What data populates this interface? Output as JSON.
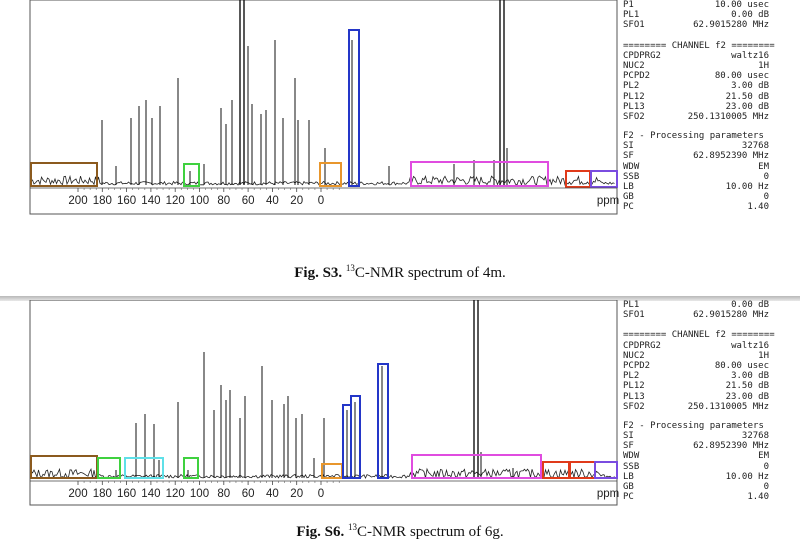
{
  "figures": [
    {
      "caption_label": "Fig. S3.",
      "caption_sup": "13",
      "caption_text": "C-NMR spectrum of 4m.",
      "axis_ticks": [
        "200",
        "180",
        "160",
        "140",
        "120",
        "100",
        "80",
        "60",
        "40",
        "20",
        "0",
        "ppm"
      ],
      "params_top": [
        {
          "k": "P1",
          "v": "10.00 usec"
        },
        {
          "k": "PL1",
          "v": "0.00 dB"
        },
        {
          "k": "SFO1",
          "v": "62.9015280 MHz"
        }
      ],
      "channel_header": "======== CHANNEL f2 ========",
      "channel_params": [
        {
          "k": "CPDPRG2",
          "v": "waltz16"
        },
        {
          "k": "NUC2",
          "v": "1H"
        },
        {
          "k": "PCPD2",
          "v": "80.00 usec"
        },
        {
          "k": "PL2",
          "v": "3.00 dB"
        },
        {
          "k": "PL12",
          "v": "21.50 dB"
        },
        {
          "k": "PL13",
          "v": "23.00 dB"
        },
        {
          "k": "SFO2",
          "v": "250.1310005 MHz"
        }
      ],
      "processing_header": "F2 - Processing parameters",
      "processing_params": [
        {
          "k": "SI",
          "v": "32768"
        },
        {
          "k": "SF",
          "v": "62.8952390 MHz"
        },
        {
          "k": "WDW",
          "v": "EM"
        },
        {
          "k": "SSB",
          "v": "0"
        },
        {
          "k": "LB",
          "v": "10.00 Hz"
        },
        {
          "k": "GB",
          "v": "0"
        },
        {
          "k": "PC",
          "v": "1.40"
        }
      ],
      "box_colors": {
        "brown": "#8B5A1E",
        "green": "#3FD13F",
        "orange": "#E8962C",
        "blue": "#2436C8",
        "magenta": "#E04CE0",
        "red": "#E03A1A",
        "violet": "#7A4CE0",
        "cyan": "#5FE0E8"
      }
    },
    {
      "caption_label": "Fig. S6.",
      "caption_sup": "13",
      "caption_text": "C-NMR spectrum of 6g.",
      "axis_ticks": [
        "200",
        "180",
        "160",
        "140",
        "120",
        "100",
        "80",
        "60",
        "40",
        "20",
        "0",
        "ppm"
      ],
      "params_top": [
        {
          "k": "PL1",
          "v": "0.00 dB"
        },
        {
          "k": "SFO1",
          "v": "62.9015280 MHz"
        }
      ],
      "channel_header": "======== CHANNEL f2 ========",
      "channel_params": [
        {
          "k": "CPDPRG2",
          "v": "waltz16"
        },
        {
          "k": "NUC2",
          "v": "1H"
        },
        {
          "k": "PCPD2",
          "v": "80.00 usec"
        },
        {
          "k": "PL2",
          "v": "3.00 dB"
        },
        {
          "k": "PL12",
          "v": "21.50 dB"
        },
        {
          "k": "PL13",
          "v": "23.00 dB"
        },
        {
          "k": "SFO2",
          "v": "250.1310005 MHz"
        }
      ],
      "processing_header": "F2 - Processing parameters",
      "processing_params": [
        {
          "k": "SI",
          "v": "32768"
        },
        {
          "k": "SF",
          "v": "62.8952390 MHz"
        },
        {
          "k": "WDW",
          "v": "EM"
        },
        {
          "k": "SSB",
          "v": "0"
        },
        {
          "k": "LB",
          "v": "10.00 Hz"
        },
        {
          "k": "GB",
          "v": "0"
        },
        {
          "k": "PC",
          "v": "1.40"
        }
      ]
    }
  ]
}
